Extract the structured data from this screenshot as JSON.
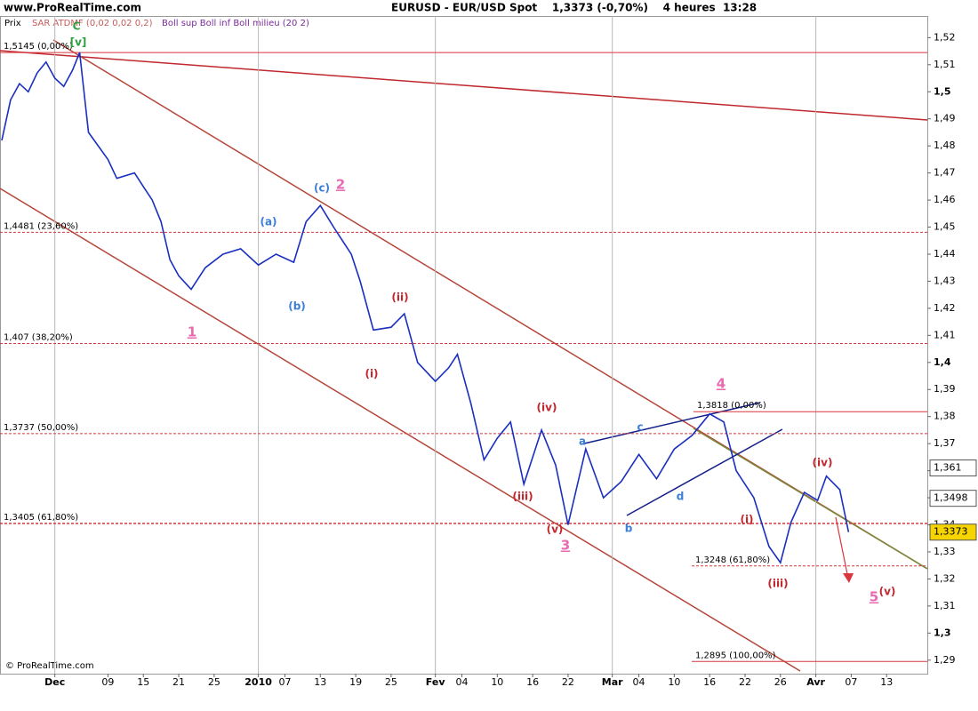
{
  "chart_data": {
    "type": "line",
    "site": "www.ProRealTime.com",
    "title": "EURUSD - EUR/USD Spot    1,3373 (-0,70%)    4 heures  13:28",
    "indicator_sar": "SAR ATDMF (0,02 0,02 0,2)",
    "indicator_boll": "Boll sup Boll inf Boll milieu (20 2)",
    "copyright": "© ProRealTime.com",
    "xlim": [
      -6.2,
      98.6
    ],
    "ylim": [
      1.285,
      1.528
    ],
    "xticks": [
      {
        "value": 0,
        "label": "Dec"
      },
      {
        "value": 6,
        "label": "09"
      },
      {
        "value": 10,
        "label": "15"
      },
      {
        "value": 14,
        "label": "21"
      },
      {
        "value": 18,
        "label": "25"
      },
      {
        "value": 23,
        "label": "2010"
      },
      {
        "value": 26,
        "label": "07"
      },
      {
        "value": 30,
        "label": "13"
      },
      {
        "value": 34,
        "label": "19"
      },
      {
        "value": 38,
        "label": "25"
      },
      {
        "value": 43,
        "label": "Fev"
      },
      {
        "value": 46,
        "label": "04"
      },
      {
        "value": 50,
        "label": "10"
      },
      {
        "value": 54,
        "label": "16"
      },
      {
        "value": 58,
        "label": "22"
      },
      {
        "value": 63,
        "label": "Mar"
      },
      {
        "value": 66,
        "label": "04"
      },
      {
        "value": 70,
        "label": "10"
      },
      {
        "value": 74,
        "label": "16"
      },
      {
        "value": 78,
        "label": "22"
      },
      {
        "value": 82,
        "label": "26"
      },
      {
        "value": 86,
        "label": "Avr"
      },
      {
        "value": 90,
        "label": "07"
      },
      {
        "value": 94,
        "label": "13"
      }
    ],
    "yticks": [
      {
        "value": 1.29,
        "label": "1,29"
      },
      {
        "value": 1.3,
        "label": "1,3"
      },
      {
        "value": 1.31,
        "label": "1,31"
      },
      {
        "value": 1.32,
        "label": "1,32"
      },
      {
        "value": 1.33,
        "label": "1,33"
      },
      {
        "value": 1.34,
        "label": "1,34"
      },
      {
        "value": 1.35,
        "label": "1,35"
      },
      {
        "value": 1.36,
        "label": "1,36"
      },
      {
        "value": 1.37,
        "label": "1,37"
      },
      {
        "value": 1.38,
        "label": "1,38"
      },
      {
        "value": 1.39,
        "label": "1,39"
      },
      {
        "value": 1.4,
        "label": "1,4"
      },
      {
        "value": 1.41,
        "label": "1,41"
      },
      {
        "value": 1.42,
        "label": "1,42"
      },
      {
        "value": 1.43,
        "label": "1,43"
      },
      {
        "value": 1.44,
        "label": "1,44"
      },
      {
        "value": 1.45,
        "label": "1,45"
      },
      {
        "value": 1.46,
        "label": "1,46"
      },
      {
        "value": 1.47,
        "label": "1,47"
      },
      {
        "value": 1.48,
        "label": "1,48"
      },
      {
        "value": 1.49,
        "label": "1,49"
      },
      {
        "value": 1.5,
        "label": "1,5"
      },
      {
        "value": 1.51,
        "label": "1,51"
      },
      {
        "value": 1.52,
        "label": "1,52"
      }
    ],
    "x": [
      -6,
      -5,
      -4,
      -3,
      -2,
      -1,
      0,
      1,
      2,
      2.8,
      3.8,
      6,
      7,
      9,
      10,
      11,
      12,
      13,
      14,
      15.4,
      17,
      19,
      21,
      23,
      25,
      27,
      28.4,
      30,
      31.5,
      33.5,
      34.5,
      36,
      38,
      39.5,
      41,
      43,
      44.5,
      45.5,
      47,
      48.5,
      50,
      51.5,
      53,
      55,
      56.6,
      58,
      60,
      62,
      64,
      66,
      68,
      70,
      72,
      74,
      75.6,
      77,
      79,
      80.7,
      82,
      83.2,
      84.7,
      86.2,
      87.2,
      88.7,
      89.7
    ],
    "series": [
      {
        "name": "Prix",
        "color": "#1a2fbf",
        "values": [
          1.482,
          1.497,
          1.503,
          1.5,
          1.507,
          1.511,
          1.505,
          1.502,
          1.508,
          1.5145,
          1.485,
          1.475,
          1.468,
          1.47,
          1.465,
          1.46,
          1.452,
          1.438,
          1.432,
          1.427,
          1.435,
          1.44,
          1.442,
          1.436,
          1.44,
          1.437,
          1.452,
          1.458,
          1.45,
          1.44,
          1.43,
          1.412,
          1.413,
          1.418,
          1.4,
          1.393,
          1.398,
          1.403,
          1.385,
          1.364,
          1.372,
          1.378,
          1.355,
          1.375,
          1.362,
          1.34,
          1.368,
          1.35,
          1.356,
          1.366,
          1.357,
          1.368,
          1.373,
          1.381,
          1.378,
          1.36,
          1.35,
          1.332,
          1.326,
          1.341,
          1.352,
          1.349,
          1.358,
          1.353,
          1.3373
        ]
      }
    ],
    "levels": [
      {
        "value": 1.5145,
        "label": "1,5145 (0,00%)",
        "dashed": false
      },
      {
        "value": 1.4481,
        "label": "1,4481 (23,60%)",
        "dashed": true
      },
      {
        "value": 1.407,
        "label": "1,407 (38,20%)",
        "dashed": true
      },
      {
        "value": 1.3737,
        "label": "1,3737 (50,00%)",
        "dashed": true
      },
      {
        "value": 1.3405,
        "label": "1,3405 (61,80%)",
        "dashed": true
      },
      {
        "value": 1.3818,
        "label": "1,3818 (0,00%)",
        "dashed": false
      },
      {
        "value": 1.3248,
        "label": "1,3248 (61,80%)",
        "dashed": true
      },
      {
        "value": 1.2895,
        "label": "1,2895 (100,00%)",
        "dashed": false
      }
    ],
    "level_color": "#d9363e",
    "price_markers": [
      {
        "value": 1.361,
        "label": "1,361",
        "color": "#ffffff"
      },
      {
        "value": 1.3498,
        "label": "1,3498",
        "color": "#ffffff"
      },
      {
        "value": 1.3373,
        "label": "1,3373",
        "color": "#f5d400"
      }
    ],
    "wave_labels": [
      {
        "text": "C",
        "color": "#2e9e3e"
      },
      {
        "text": "[v]",
        "color": "#2e9e3e"
      },
      {
        "text": "(a)",
        "color": "#3b7fd6"
      },
      {
        "text": "(b)",
        "color": "#3b7fd6"
      },
      {
        "text": "(c)",
        "color": "#3b7fd6"
      },
      {
        "text": "1",
        "color": "#e86ab0"
      },
      {
        "text": "2",
        "color": "#e86ab0"
      },
      {
        "text": "(i)",
        "color": "#c0282e"
      },
      {
        "text": "(ii)",
        "color": "#c0282e"
      },
      {
        "text": "(iii)",
        "color": "#c0282e"
      },
      {
        "text": "(iv)",
        "color": "#c0282e"
      },
      {
        "text": "(v)",
        "color": "#c0282e"
      },
      {
        "text": "3",
        "color": "#e86ab0"
      },
      {
        "text": "a",
        "color": "#3b7fd6"
      },
      {
        "text": "b",
        "color": "#3b7fd6"
      },
      {
        "text": "c",
        "color": "#3b7fd6"
      },
      {
        "text": "d",
        "color": "#3b7fd6"
      },
      {
        "text": "4",
        "color": "#e86ab0"
      },
      {
        "text": "(i)",
        "color": "#c0282e"
      },
      {
        "text": "(iii)",
        "color": "#c0282e"
      },
      {
        "text": "(iv)",
        "color": "#c0282e"
      },
      {
        "text": "5",
        "color": "#e86ab0"
      },
      {
        "text": "(v)",
        "color": "#c0282e"
      }
    ]
  }
}
